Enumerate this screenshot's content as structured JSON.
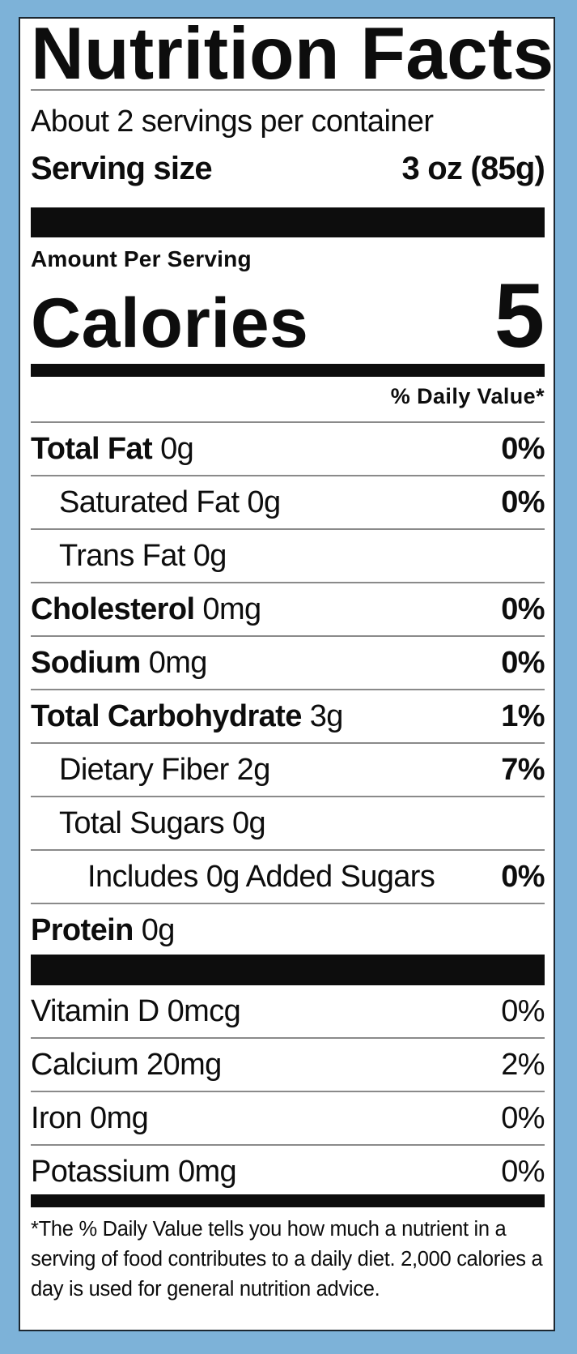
{
  "colors": {
    "background": "#7db2d8",
    "label_bg": "#ffffff",
    "ink": "#0d0d0d",
    "rule": "#8a8a8a",
    "border": "#1c2730"
  },
  "title": "Nutrition Facts",
  "servings_per_container": "About 2 servings per container",
  "serving_size": {
    "label": "Serving size",
    "value": "3 oz (85g)"
  },
  "amount_per_serving": "Amount Per Serving",
  "calories": {
    "label": "Calories",
    "value": "5"
  },
  "daily_value_header": "% Daily Value*",
  "nutrients": [
    {
      "name": "Total Fat",
      "amount": "0g",
      "dv": "0%"
    },
    {
      "name": "Saturated Fat",
      "amount": "0g",
      "dv": "0%"
    },
    {
      "name": "Trans Fat",
      "amount": "0g",
      "dv": ""
    },
    {
      "name": "Cholesterol",
      "amount": "0mg",
      "dv": "0%"
    },
    {
      "name": "Sodium",
      "amount": "0mg",
      "dv": "0%"
    },
    {
      "name": "Total Carbohydrate",
      "amount": "3g",
      "dv": "1%"
    },
    {
      "name": "Dietary Fiber",
      "amount": "2g",
      "dv": "7%"
    },
    {
      "name": "Total Sugars",
      "amount": "0g",
      "dv": ""
    },
    {
      "name": "Includes 0g Added Sugars",
      "amount": "",
      "dv": "0%"
    },
    {
      "name": "Protein",
      "amount": "0g",
      "dv": ""
    }
  ],
  "vitamins": [
    {
      "name": "Vitamin D 0mcg",
      "dv": "0%"
    },
    {
      "name": "Calcium 20mg",
      "dv": "2%"
    },
    {
      "name": "Iron 0mg",
      "dv": "0%"
    },
    {
      "name": "Potassium 0mg",
      "dv": "0%"
    }
  ],
  "footnote": "*The % Daily Value tells you how much a nutrient in a serving of food contributes to a daily diet. 2,000 calories a day is used for general nutrition advice."
}
